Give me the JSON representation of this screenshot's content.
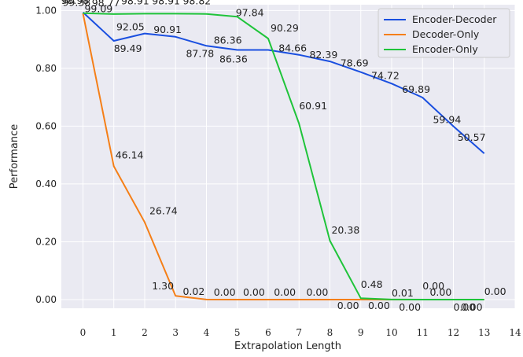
{
  "chart_data": {
    "type": "line",
    "title": "",
    "xlabel": "Extrapolation Length",
    "ylabel": "Performance",
    "x": [
      0,
      1,
      2,
      3,
      4,
      5,
      6,
      7,
      8,
      9,
      10,
      11,
      12,
      13
    ],
    "xticks": [
      0,
      1,
      2,
      3,
      4,
      5,
      6,
      7,
      8,
      9,
      10,
      11,
      12,
      13,
      14
    ],
    "xlim": [
      -0.7,
      14
    ],
    "yticks": [
      "0.00",
      "0.20",
      "0.40",
      "0.60",
      "0.80",
      "1.00"
    ],
    "ylim": [
      -0.03,
      1.02
    ],
    "grid": true,
    "legend_position": "top-right",
    "series": [
      {
        "name": "Encoder-Decoder",
        "color": "#1a4fe0",
        "values": [
          0.9938,
          0.8949,
          0.9205,
          0.9091,
          0.8778,
          0.8636,
          0.8636,
          0.8466,
          0.8239,
          0.7869,
          0.7472,
          0.6989,
          0.5994,
          0.5057
        ],
        "labels": [
          "99.38",
          "89.49",
          "92.05",
          "90.91",
          "87.78",
          "86.36",
          "86.36",
          "84.66",
          "82.39",
          "78.69",
          "74.72",
          "69.89",
          "59.94",
          "50.57"
        ]
      },
      {
        "name": "Decoder-Only",
        "color": "#f57f17",
        "values": [
          0.9898,
          0.4614,
          0.2674,
          0.013,
          0.0002,
          0.0,
          0.0,
          0.0,
          0.0,
          0.0,
          0.0,
          0.0,
          0.0,
          0.0
        ],
        "labels": [
          "98.98",
          "46.14",
          "26.74",
          "1.30",
          "0.02",
          "0.00",
          "0.00",
          "0.00",
          "0.00",
          "0.00",
          "0.00",
          "0.00",
          "0.00",
          "0.00"
        ]
      },
      {
        "name": "Encoder-Only",
        "color": "#1fc43a",
        "values": [
          0.9909,
          0.9877,
          0.9891,
          0.9891,
          0.9882,
          0.9784,
          0.9029,
          0.6091,
          0.2038,
          0.0048,
          0.0001,
          0.0,
          0.0,
          0.0
        ],
        "labels": [
          "99.09",
          "98.77",
          "98.91",
          "98.91",
          "98.82",
          "97.84",
          "90.29",
          "60.91",
          "20.38",
          "0.48",
          "0.01",
          "0.00",
          "0.00",
          "0.00"
        ]
      }
    ]
  }
}
